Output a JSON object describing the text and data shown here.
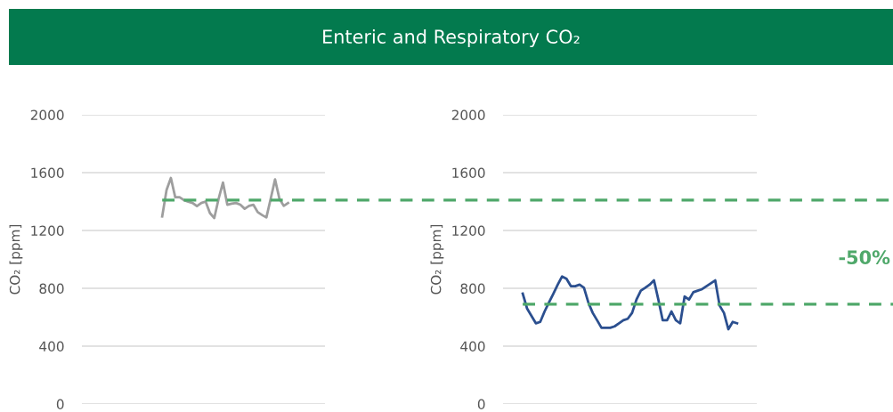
{
  "chart_data": [
    {
      "type": "line",
      "title": "Enteric and Respiratory CO₂",
      "ylabel": "CO₂ [ppm]",
      "categories": [
        null,
        null,
        null,
        null,
        null,
        null,
        null,
        null,
        null,
        null,
        null,
        null,
        null,
        null,
        null,
        null,
        null,
        null,
        null,
        null,
        null,
        null,
        null,
        null,
        null,
        null,
        null,
        null,
        null,
        null,
        null,
        null,
        null,
        null,
        null,
        null,
        null,
        null,
        null,
        null,
        null,
        null,
        null,
        null,
        null,
        null,
        null,
        null,
        null,
        null,
        null,
        null,
        null,
        null,
        null,
        null
      ],
      "series": [
        {
          "color": "#9e9e9e",
          "values": [
            null,
            null,
            null,
            null,
            null,
            null,
            null,
            null,
            null,
            null,
            null,
            null,
            null,
            null,
            null,
            null,
            null,
            null,
            1297,
            1480,
            1563,
            1430,
            1430,
            1410,
            1399,
            1390,
            1368,
            1390,
            1400,
            1320,
            1286,
            1420,
            1532,
            1378,
            1385,
            1390,
            1378,
            1350,
            1370,
            1378,
            1327,
            1307,
            1290,
            1420,
            1553,
            1420,
            1370,
            1390,
            null,
            null,
            null,
            null,
            null,
            null,
            null,
            null
          ]
        }
      ],
      "ylim": [
        0,
        2000
      ],
      "yticks": [
        0,
        400,
        800,
        1200,
        1600,
        2000
      ],
      "grid": "y",
      "marker": "none",
      "line_style": "solid",
      "ref_lines": [
        {
          "axis": "y",
          "value": 1410,
          "color": "#4fa86a",
          "line_style": "dashed"
        }
      ]
    },
    {
      "type": "line",
      "ylabel": "CO₂ [ppm]",
      "categories": [
        null,
        null,
        null,
        null,
        null,
        null,
        null,
        null,
        null,
        null,
        null,
        null,
        null,
        null,
        null,
        null,
        null,
        null,
        null,
        null,
        null,
        null,
        null,
        null,
        null,
        null,
        null,
        null,
        null,
        null,
        null,
        null,
        null,
        null,
        null,
        null,
        null,
        null,
        null,
        null,
        null,
        null,
        null,
        null,
        null,
        null,
        null,
        null,
        null,
        null,
        null,
        null,
        null,
        null,
        null,
        null,
        null,
        null
      ],
      "series": [
        {
          "color": "#2b4f8f",
          "values": [
            null,
            null,
            null,
            null,
            763,
            660,
            609,
            558,
            568,
            640,
            702,
            763,
            825,
            882,
            866,
            815,
            815,
            825,
            804,
            702,
            630,
            579,
            527,
            527,
            527,
            537,
            558,
            579,
            589,
            630,
            722,
            784,
            804,
            825,
            855,
            722,
            579,
            579,
            640,
            579,
            558,
            743,
            722,
            773,
            784,
            794,
            815,
            835,
            855,
            681,
            630,
            517,
            568,
            558,
            null,
            null,
            null,
            null
          ]
        }
      ],
      "ylim": [
        0,
        2000
      ],
      "yticks": [
        0,
        400,
        800,
        1200,
        1600,
        2000
      ],
      "grid": "y",
      "marker": "none",
      "line_style": "solid",
      "ref_lines": [
        {
          "axis": "y",
          "value": 690,
          "color": "#4fa86a",
          "line_style": "dashed"
        }
      ],
      "annotations": [
        "-50%"
      ]
    }
  ]
}
